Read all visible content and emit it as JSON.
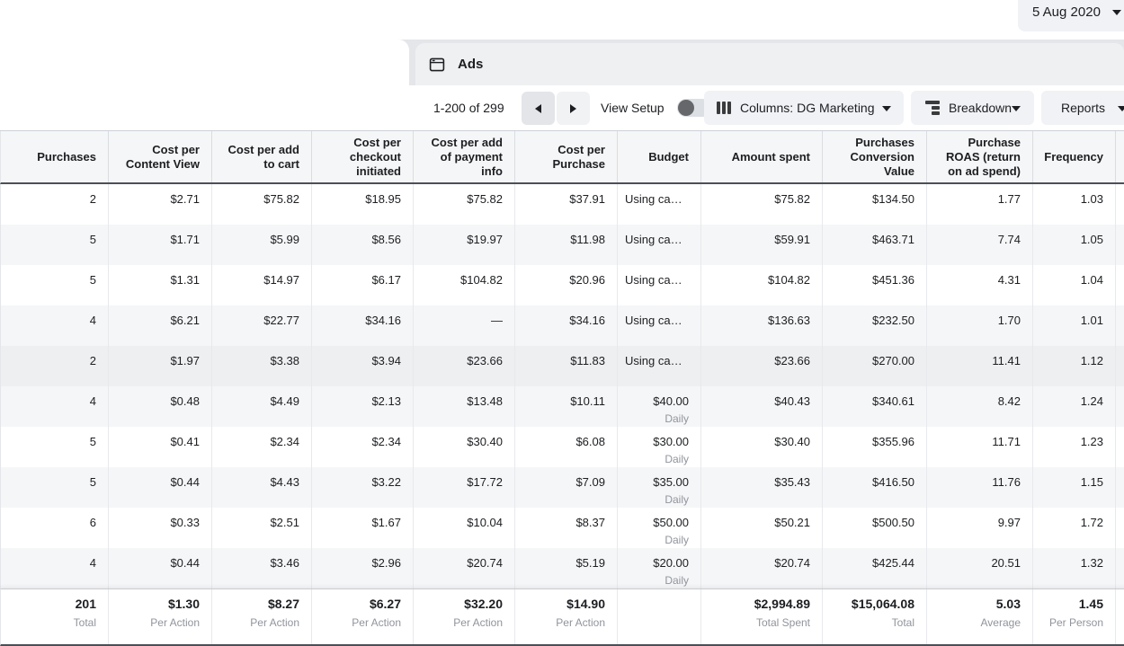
{
  "topbar": {
    "date_label": "5 Aug 2020"
  },
  "tabs": {
    "ads_label": "Ads"
  },
  "toolbar": {
    "pagination": "1-200 of 299",
    "view_setup_label": "View Setup",
    "columns_label": "Columns:",
    "columns_value": "DG Marketing",
    "breakdown_label": "Breakdown",
    "reports_label": "Reports"
  },
  "colors": {
    "row_stripe": "#f5f6f7",
    "row_hover": "#eeeff1",
    "header_border": "#4b4f56",
    "button_bg": "#f0f2f5",
    "subtext": "#90949c"
  },
  "table": {
    "columns": [
      {
        "key": "purchases",
        "label": "Purchases"
      },
      {
        "key": "cost_per_content_view",
        "label": "Cost per Content View"
      },
      {
        "key": "cost_per_add_to_cart",
        "label": "Cost per add to cart"
      },
      {
        "key": "cost_per_checkout_initiated",
        "label": "Cost per checkout initiated"
      },
      {
        "key": "cost_per_add_of_payment_info",
        "label": "Cost per add of payment info"
      },
      {
        "key": "cost_per_purchase",
        "label": "Cost per Purchase"
      },
      {
        "key": "budget",
        "label": "Budget"
      },
      {
        "key": "amount_spent",
        "label": "Amount spent"
      },
      {
        "key": "purchases_conversion_value",
        "label": "Purchases Conversion Value"
      },
      {
        "key": "purchase_roas",
        "label": "Purchase ROAS (return on ad spend)"
      },
      {
        "key": "frequency",
        "label": "Frequency"
      }
    ],
    "rows": [
      {
        "shade": "white",
        "cells": [
          "2",
          "$2.71",
          "$75.82",
          "$18.95",
          "$75.82",
          "$37.91",
          {
            "value": "Using ca…",
            "align": "left"
          },
          "$75.82",
          "$134.50",
          "1.77",
          "1.03"
        ]
      },
      {
        "shade": "gray",
        "cells": [
          "5",
          "$1.71",
          "$5.99",
          "$8.56",
          "$19.97",
          "$11.98",
          {
            "value": "Using ca…",
            "align": "left"
          },
          "$59.91",
          "$463.71",
          "7.74",
          "1.05"
        ]
      },
      {
        "shade": "white",
        "cells": [
          "5",
          "$1.31",
          "$14.97",
          "$6.17",
          "$104.82",
          "$20.96",
          {
            "value": "Using ca…",
            "align": "left"
          },
          "$104.82",
          "$451.36",
          "4.31",
          "1.04"
        ]
      },
      {
        "shade": "gray",
        "cells": [
          "4",
          "$6.21",
          "$22.77",
          "$34.16",
          "—",
          "$34.16",
          {
            "value": "Using ca…",
            "align": "left"
          },
          "$136.63",
          "$232.50",
          "1.70",
          "1.01"
        ]
      },
      {
        "shade": "hover",
        "cells": [
          "2",
          "$1.97",
          "$3.38",
          "$3.94",
          "$23.66",
          "$11.83",
          {
            "value": "Using ca…",
            "align": "left"
          },
          "$23.66",
          "$270.00",
          "11.41",
          "1.12"
        ]
      },
      {
        "shade": "gray",
        "cells": [
          "4",
          "$0.48",
          "$4.49",
          "$2.13",
          "$13.48",
          "$10.11",
          {
            "value": "$40.00",
            "sub": "Daily"
          },
          "$40.43",
          "$340.61",
          "8.42",
          "1.24"
        ]
      },
      {
        "shade": "white",
        "cells": [
          "5",
          "$0.41",
          "$2.34",
          "$2.34",
          "$30.40",
          "$6.08",
          {
            "value": "$30.00",
            "sub": "Daily"
          },
          "$30.40",
          "$355.96",
          "11.71",
          "1.23"
        ]
      },
      {
        "shade": "gray",
        "cells": [
          "5",
          "$0.44",
          "$4.43",
          "$3.22",
          "$17.72",
          "$7.09",
          {
            "value": "$35.00",
            "sub": "Daily"
          },
          "$35.43",
          "$416.50",
          "11.76",
          "1.15"
        ]
      },
      {
        "shade": "white",
        "cells": [
          "6",
          "$0.33",
          "$2.51",
          "$1.67",
          "$10.04",
          "$8.37",
          {
            "value": "$50.00",
            "sub": "Daily"
          },
          "$50.21",
          "$500.50",
          "9.97",
          "1.72"
        ]
      },
      {
        "shade": "gray",
        "cells": [
          "4",
          "$0.44",
          "$3.46",
          "$2.96",
          "$20.74",
          "$5.19",
          {
            "value": "$20.00",
            "sub": "Daily"
          },
          "$20.74",
          "$425.44",
          "20.51",
          "1.32"
        ]
      }
    ],
    "totals": [
      {
        "value": "201",
        "sub": "Total"
      },
      {
        "value": "$1.30",
        "sub": "Per Action"
      },
      {
        "value": "$8.27",
        "sub": "Per Action"
      },
      {
        "value": "$6.27",
        "sub": "Per Action"
      },
      {
        "value": "$32.20",
        "sub": "Per Action"
      },
      {
        "value": "$14.90",
        "sub": "Per Action"
      },
      {
        "value": "",
        "sub": ""
      },
      {
        "value": "$2,994.89",
        "sub": "Total Spent"
      },
      {
        "value": "$15,064.08",
        "sub": "Total"
      },
      {
        "value": "5.03",
        "sub": "Average"
      },
      {
        "value": "1.45",
        "sub": "Per Person"
      }
    ]
  }
}
